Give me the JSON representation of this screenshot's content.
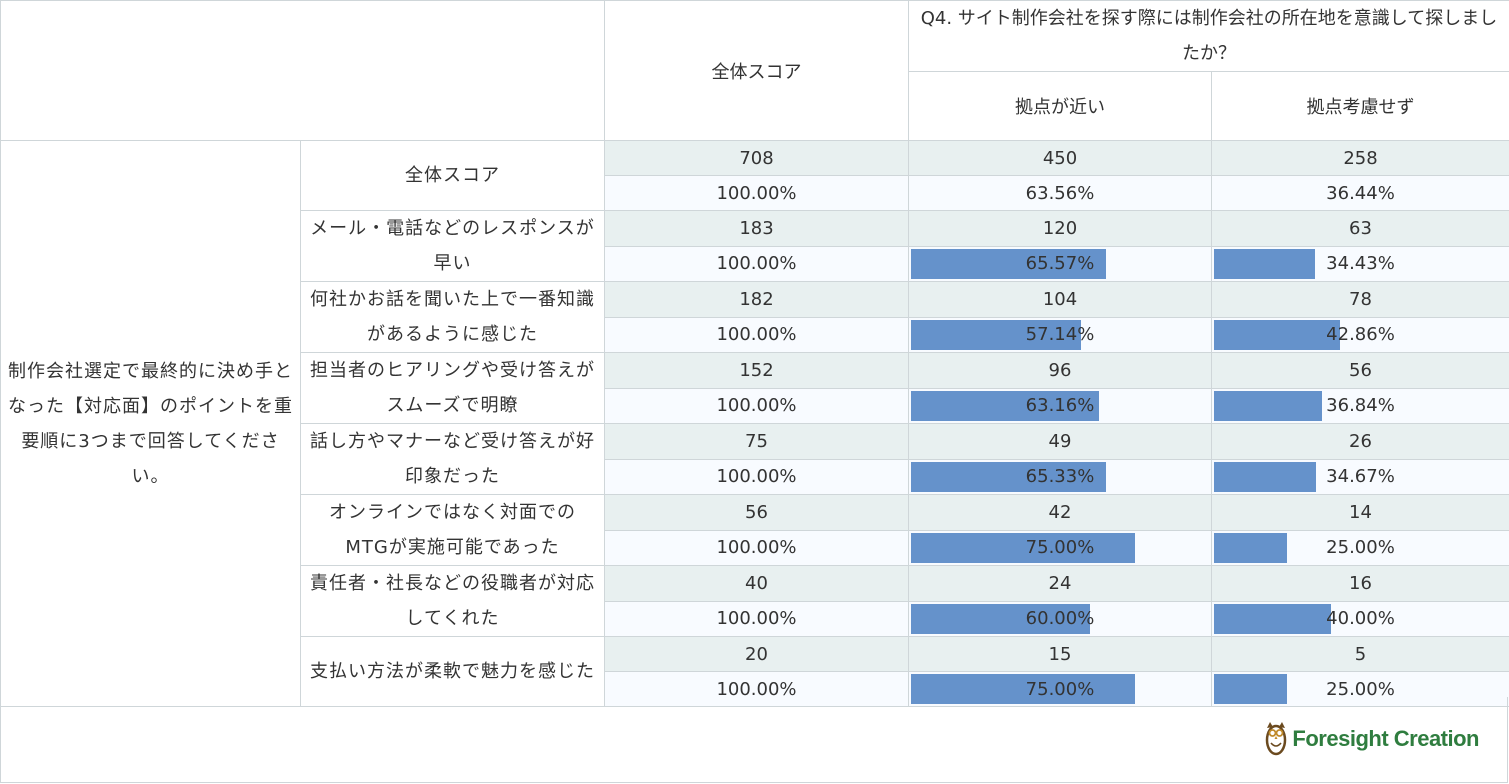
{
  "header": {
    "question": "Q4. サイト制作会社を探す際には制作会社の所在地を意識して探しましたか？",
    "columns": [
      "全体スコア",
      "拠点が近い",
      "拠点考慮せず"
    ]
  },
  "side_label": "制作会社選定で最終的に決め手となった【対応面】のポイントを重要順に3つまで回答してください。",
  "rows": [
    {
      "label": "全体スコア",
      "total": "708",
      "near": "450",
      "none": "258",
      "total_pct": "100.00%",
      "near_pct": "63.56%",
      "none_pct": "36.44%",
      "bar": false
    },
    {
      "label": "メール・電話などのレスポンスが早い",
      "total": "183",
      "near": "120",
      "none": "63",
      "total_pct": "100.00%",
      "near_pct": "65.57%",
      "none_pct": "34.43%",
      "bar": true,
      "near_frac": 0.6557,
      "none_frac": 0.3443
    },
    {
      "label": "何社かお話を聞いた上で一番知識があるように感じた",
      "total": "182",
      "near": "104",
      "none": "78",
      "total_pct": "100.00%",
      "near_pct": "57.14%",
      "none_pct": "42.86%",
      "bar": true,
      "near_frac": 0.5714,
      "none_frac": 0.4286
    },
    {
      "label": "担当者のヒアリングや受け答えがスムーズで明瞭",
      "total": "152",
      "near": "96",
      "none": "56",
      "total_pct": "100.00%",
      "near_pct": "63.16%",
      "none_pct": "36.84%",
      "bar": true,
      "near_frac": 0.6316,
      "none_frac": 0.3684
    },
    {
      "label": "話し方やマナーなど受け答えが好印象だった",
      "total": "75",
      "near": "49",
      "none": "26",
      "total_pct": "100.00%",
      "near_pct": "65.33%",
      "none_pct": "34.67%",
      "bar": true,
      "near_frac": 0.6533,
      "none_frac": 0.3467
    },
    {
      "label": "オンラインではなく対面でのMTGが実施可能であった",
      "total": "56",
      "near": "42",
      "none": "14",
      "total_pct": "100.00%",
      "near_pct": "75.00%",
      "none_pct": "25.00%",
      "bar": true,
      "near_frac": 0.75,
      "none_frac": 0.25
    },
    {
      "label": "責任者・社長などの役職者が対応してくれた",
      "total": "40",
      "near": "24",
      "none": "16",
      "total_pct": "100.00%",
      "near_pct": "60.00%",
      "none_pct": "40.00%",
      "bar": true,
      "near_frac": 0.6,
      "none_frac": 0.4
    },
    {
      "label": "支払い方法が柔軟で魅力を感じた",
      "total": "20",
      "near": "15",
      "none": "5",
      "total_pct": "100.00%",
      "near_pct": "75.00%",
      "none_pct": "25.00%",
      "bar": true,
      "near_frac": 0.75,
      "none_frac": 0.25
    }
  ],
  "logo": {
    "text": "Foresight Creation",
    "icon": "owl-icon",
    "color": "#2f7d3f"
  },
  "colors": {
    "bar": "#6592cb",
    "count_row_bg": "#e8f0f0",
    "pct_row_bg": "#f8fbff",
    "border": "#cfd6d9"
  }
}
